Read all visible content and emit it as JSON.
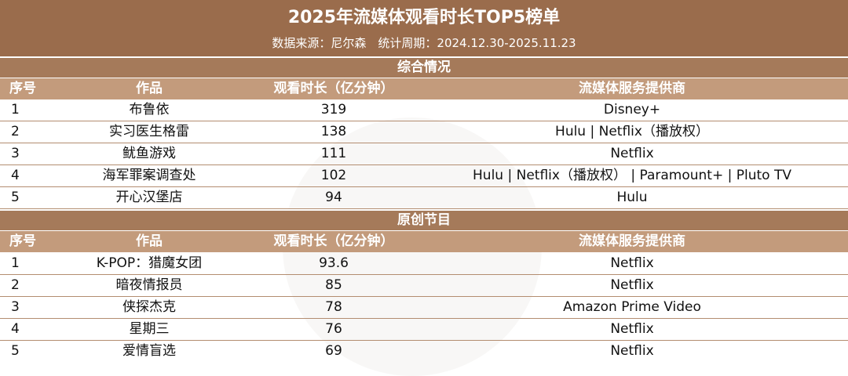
{
  "title": "2025年流媒体观看时长TOP5榜单",
  "subtitle": "数据来源：尼尔森　统计周期：2024.12.30-2025.11.23",
  "columns": {
    "no": "序号",
    "work": "作品",
    "time": "观看时长（亿分钟）",
    "provider": "流媒体服务提供商"
  },
  "sections": [
    {
      "name": "综合情况",
      "rows": [
        {
          "no": "1",
          "work": "布鲁依",
          "time": "319",
          "provider": "Disney+"
        },
        {
          "no": "2",
          "work": "实习医生格雷",
          "time": "138",
          "provider": "Hulu | Netflix（播放权）"
        },
        {
          "no": "3",
          "work": "鱿鱼游戏",
          "time": "111",
          "provider": "Netflix"
        },
        {
          "no": "4",
          "work": "海军罪案调查处",
          "time": "102",
          "provider": "Hulu | Netflix（播放权） | Paramount+ | Pluto TV"
        },
        {
          "no": "5",
          "work": "开心汉堡店",
          "time": "94",
          "provider": "Hulu"
        }
      ]
    },
    {
      "name": "原创节目",
      "rows": [
        {
          "no": "1",
          "work": "K-POP：猎魔女团",
          "time": "93.6",
          "provider": "Netflix"
        },
        {
          "no": "2",
          "work": "暗夜情报员",
          "time": "85",
          "provider": "Netflix"
        },
        {
          "no": "3",
          "work": "侠探杰克",
          "time": "78",
          "provider": "Amazon Prime Video"
        },
        {
          "no": "4",
          "work": "星期三",
          "time": "76",
          "provider": "Netflix"
        },
        {
          "no": "5",
          "work": "爱情盲选",
          "time": "69",
          "provider": "Netflix"
        }
      ]
    }
  ]
}
